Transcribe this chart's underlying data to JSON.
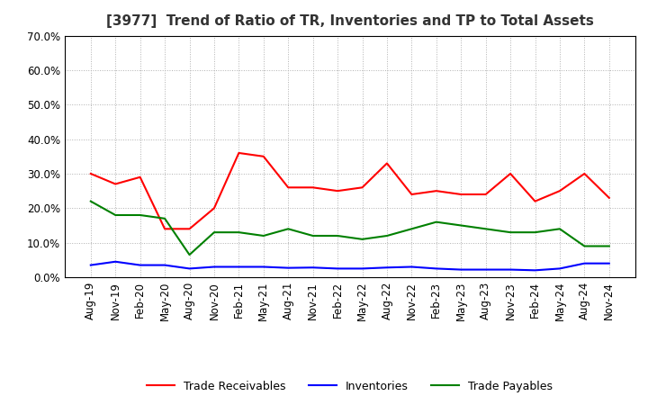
{
  "title": "[3977]  Trend of Ratio of TR, Inventories and TP to Total Assets",
  "labels": [
    "Aug-19",
    "Nov-19",
    "Feb-20",
    "May-20",
    "Aug-20",
    "Nov-20",
    "Feb-21",
    "May-21",
    "Aug-21",
    "Nov-21",
    "Feb-22",
    "May-22",
    "Aug-22",
    "Nov-22",
    "Feb-23",
    "May-23",
    "Aug-23",
    "Nov-23",
    "Feb-24",
    "May-24",
    "Aug-24",
    "Nov-24"
  ],
  "trade_receivables": [
    0.3,
    0.27,
    0.29,
    0.14,
    0.14,
    0.2,
    0.36,
    0.35,
    0.26,
    0.26,
    0.25,
    0.26,
    0.33,
    0.24,
    0.25,
    0.24,
    0.24,
    0.3,
    0.22,
    0.25,
    0.3,
    0.23
  ],
  "inventories": [
    0.035,
    0.045,
    0.035,
    0.035,
    0.025,
    0.03,
    0.03,
    0.03,
    0.027,
    0.028,
    0.025,
    0.025,
    0.028,
    0.03,
    0.025,
    0.022,
    0.022,
    0.022,
    0.02,
    0.025,
    0.04,
    0.04
  ],
  "trade_payables": [
    0.22,
    0.18,
    0.18,
    0.17,
    0.065,
    0.13,
    0.13,
    0.12,
    0.14,
    0.12,
    0.12,
    0.11,
    0.12,
    0.14,
    0.16,
    0.15,
    0.14,
    0.13,
    0.13,
    0.14,
    0.09,
    0.09
  ],
  "tr_color": "#ff0000",
  "inv_color": "#0000ff",
  "tp_color": "#008000",
  "ylim": [
    0.0,
    0.7
  ],
  "yticks": [
    0.0,
    0.1,
    0.2,
    0.3,
    0.4,
    0.5,
    0.6,
    0.7
  ],
  "background_color": "#ffffff",
  "grid_color": "#b0b0b0",
  "legend_tr": "Trade Receivables",
  "legend_inv": "Inventories",
  "legend_tp": "Trade Payables",
  "title_fontsize": 11,
  "tick_fontsize": 8.5,
  "legend_fontsize": 9
}
